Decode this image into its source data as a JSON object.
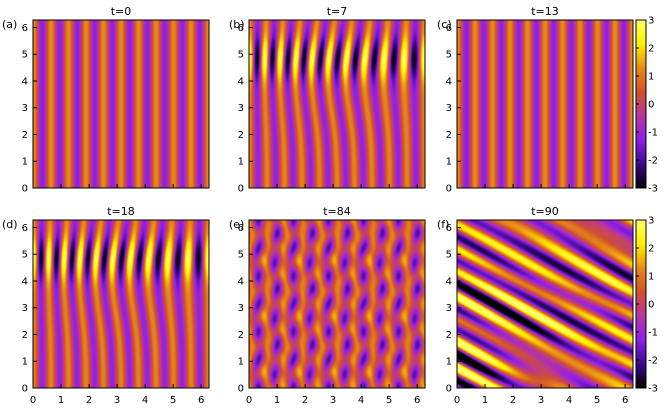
{
  "chart_data": {
    "type": "heatmap",
    "colormap": [
      "#000000",
      "#3a0a8c",
      "#8f1fe8",
      "#b8369e",
      "#d0512c",
      "#e98a17",
      "#fff000",
      "#ffff66"
    ],
    "color_range": [
      -3,
      3
    ],
    "colorbar_ticks": [
      "3",
      "2",
      "1",
      "0",
      "-1",
      "-2",
      "-3"
    ],
    "x_ticks": [
      "0",
      "1",
      "2",
      "3",
      "4",
      "5",
      "6"
    ],
    "y_ticks": [
      "0",
      "1",
      "2",
      "3",
      "4",
      "5",
      "6"
    ],
    "xlim": [
      0,
      6.28
    ],
    "ylim": [
      0,
      6.28
    ],
    "panels": [
      {
        "label": "(a)",
        "title": "t=0",
        "pattern": "stripes",
        "stripes": 10,
        "bulge": false
      },
      {
        "label": "(b)",
        "title": "t=7",
        "pattern": "bulge",
        "stripes": 10,
        "bulge": true
      },
      {
        "label": "(c)",
        "title": "t=13",
        "pattern": "stripes",
        "stripes": 10,
        "bulge": false
      },
      {
        "label": "(d)",
        "title": "t=18",
        "pattern": "bulge",
        "stripes": 10,
        "bulge": true
      },
      {
        "label": "(e)",
        "title": "t=84",
        "pattern": "cellular",
        "stripes": 10,
        "bulge": false
      },
      {
        "label": "(f)",
        "title": "t=90",
        "pattern": "turbulent",
        "stripes": 0,
        "bulge": false
      }
    ]
  }
}
